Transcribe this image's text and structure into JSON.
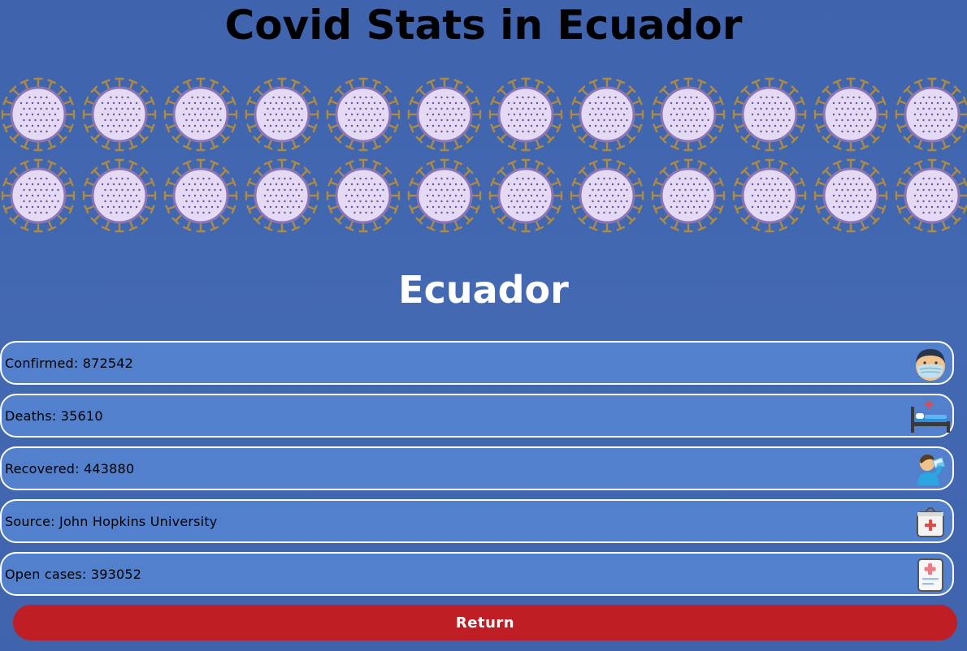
{
  "header": {
    "title": "Covid Stats in Ecuador"
  },
  "decoration": {
    "icon": "virus-icon",
    "rows": 2,
    "per_row": 12
  },
  "country": {
    "name": "Ecuador"
  },
  "stats": [
    {
      "label": "Confirmed: 872542",
      "icon": "masked-face-icon"
    },
    {
      "label": "Deaths: 35610",
      "icon": "hospital-bed-icon"
    },
    {
      "label": "Recovered: 443880",
      "icon": "person-drinking-icon"
    },
    {
      "label": "Source: John Hopkins University",
      "icon": "medical-kit-icon"
    },
    {
      "label": "Open cases: 393052",
      "icon": "medical-chart-icon"
    }
  ],
  "actions": {
    "return_label": "Return"
  },
  "colors": {
    "background": "#4268b2",
    "row_fill": "#5280cc",
    "row_border": "#ffffff",
    "return_button": "#bf1f24"
  }
}
